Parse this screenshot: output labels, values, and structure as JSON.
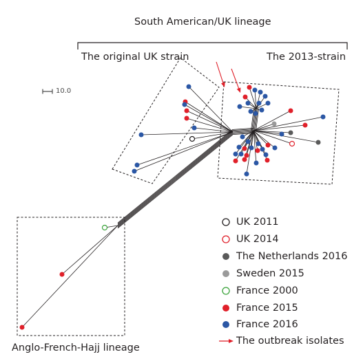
{
  "labels": {
    "lineage_south_american_uk": "South American/UK lineage",
    "original_uk_strain": "The original UK strain",
    "strain_2013": "The 2013-strain",
    "anglo_french_hajj": "Anglo-French-Hajj lineage",
    "scale_bar": "10.0"
  },
  "colors": {
    "france_2015": "#e0202a",
    "france_2016": "#2b57a5",
    "netherlands_2016": "#5a5a5a",
    "sweden_2015": "#9a9a9a",
    "france_2000": "#3aa33a",
    "uk_2011": "#231f20",
    "uk_2014": "#e0202a",
    "outbreak_arrow": "#e0202a"
  },
  "legend": [
    {
      "label": "UK 2011",
      "symbol": "open-circle",
      "color": "#231f20"
    },
    {
      "label": "UK 2014",
      "symbol": "open-circle",
      "color": "#e0202a"
    },
    {
      "label": "The Netherlands 2016",
      "symbol": "filled-circle",
      "color": "#5a5a5a"
    },
    {
      "label": "Sweden 2015",
      "symbol": "filled-circle",
      "color": "#9a9a9a"
    },
    {
      "label": "France 2000",
      "symbol": "open-circle",
      "color": "#3aa33a"
    },
    {
      "label": "France 2015",
      "symbol": "filled-circle",
      "color": "#e0202a"
    },
    {
      "label": "France 2016",
      "symbol": "filled-circle",
      "color": "#2b57a5"
    },
    {
      "label": "The outbreak isolates",
      "symbol": "arrow",
      "color": "#e0202a"
    }
  ]
}
